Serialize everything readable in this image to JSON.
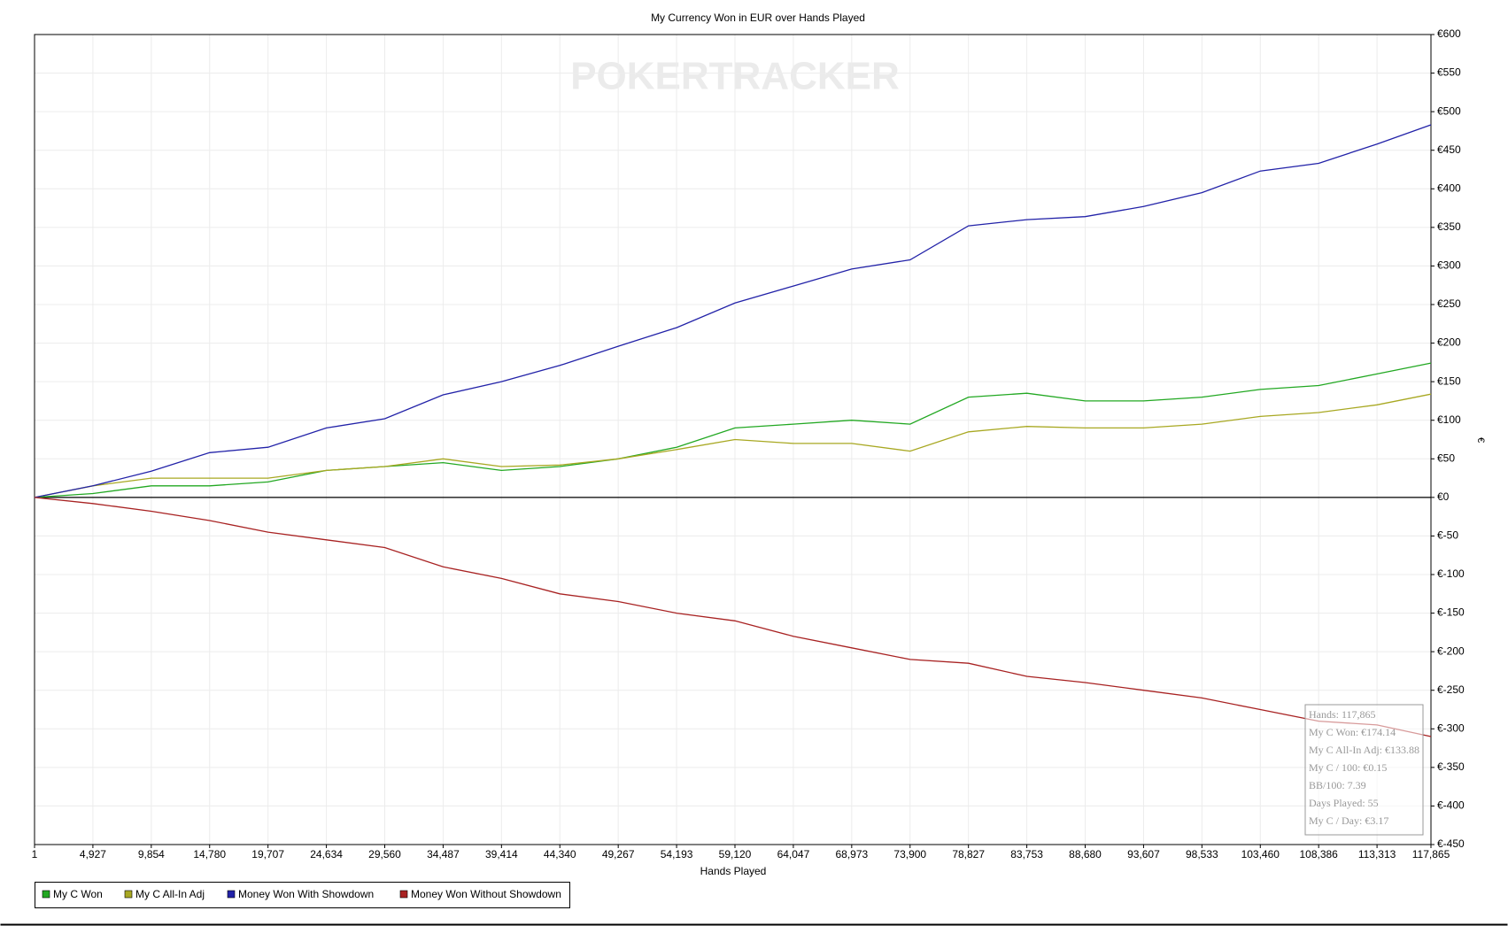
{
  "chart_data": {
    "type": "line",
    "title": "My Currency Won in EUR over Hands Played",
    "watermark": "POKERTRACKER",
    "x_label": "Hands Played",
    "y_label": "€",
    "xlim": [
      1,
      117865
    ],
    "ylim": [
      -450,
      600
    ],
    "grid": true,
    "legend": "bottom-left",
    "xticks": [
      1,
      {
        "value": 4927,
        "label": "4,927"
      },
      {
        "value": 9854,
        "label": "9,854"
      },
      {
        "value": 14780,
        "label": "14,780"
      },
      {
        "value": 19707,
        "label": "19,707"
      },
      {
        "value": 24634,
        "label": "24,634"
      },
      {
        "value": 29560,
        "label": "29,560"
      },
      {
        "value": 34487,
        "label": "34,487"
      },
      {
        "value": 39414,
        "label": "39,414"
      },
      {
        "value": 44340,
        "label": "44,340"
      },
      {
        "value": 49267,
        "label": "49,267"
      },
      {
        "value": 54193,
        "label": "54,193"
      },
      {
        "value": 59120,
        "label": "59,120"
      },
      {
        "value": 64047,
        "label": "64,047"
      },
      {
        "value": 68973,
        "label": "68,973"
      },
      {
        "value": 73900,
        "label": "73,900"
      },
      {
        "value": 78827,
        "label": "78,827"
      },
      {
        "value": 83753,
        "label": "83,753"
      },
      {
        "value": 88680,
        "label": "88,680"
      },
      {
        "value": 93607,
        "label": "93,607"
      },
      {
        "value": 98533,
        "label": "98,533"
      },
      {
        "value": 103460,
        "label": "103,460"
      },
      {
        "value": 108386,
        "label": "108,386"
      },
      {
        "value": 113313,
        "label": "113,313"
      },
      {
        "value": 117865,
        "label": "117,865"
      }
    ],
    "yticks": [
      {
        "value": 600,
        "label": "€600"
      },
      {
        "value": 550,
        "label": "€550"
      },
      {
        "value": 500,
        "label": "€500"
      },
      {
        "value": 450,
        "label": "€450"
      },
      {
        "value": 400,
        "label": "€400"
      },
      {
        "value": 350,
        "label": "€350"
      },
      {
        "value": 300,
        "label": "€300"
      },
      {
        "value": 250,
        "label": "€250"
      },
      {
        "value": 200,
        "label": "€200"
      },
      {
        "value": 150,
        "label": "€150"
      },
      {
        "value": 100,
        "label": "€100"
      },
      {
        "value": 50,
        "label": "€50"
      },
      {
        "value": 0,
        "label": "€0"
      },
      {
        "value": -50,
        "label": "€-50"
      },
      {
        "value": -100,
        "label": "€-100"
      },
      {
        "value": -150,
        "label": "€-150"
      },
      {
        "value": -200,
        "label": "€-200"
      },
      {
        "value": -250,
        "label": "€-250"
      },
      {
        "value": -300,
        "label": "€-300"
      },
      {
        "value": -350,
        "label": "€-350"
      },
      {
        "value": -400,
        "label": "€-400"
      },
      {
        "value": -450,
        "label": "€-450"
      }
    ],
    "x": [
      1,
      4927,
      9854,
      14780,
      19707,
      24634,
      29560,
      34487,
      39414,
      44340,
      49267,
      54193,
      59120,
      64047,
      68973,
      73900,
      78827,
      83753,
      88680,
      93607,
      98533,
      103460,
      108386,
      113313,
      117865
    ],
    "series": [
      {
        "name": "My C Won",
        "color": "#22a822",
        "values": [
          0,
          5,
          15,
          15,
          20,
          35,
          40,
          45,
          35,
          40,
          50,
          65,
          90,
          95,
          100,
          95,
          130,
          135,
          125,
          125,
          130,
          140,
          145,
          160,
          174.14
        ]
      },
      {
        "name": "My C All-In Adj",
        "color": "#a8a822",
        "values": [
          0,
          15,
          25,
          25,
          25,
          35,
          40,
          50,
          40,
          42,
          50,
          62,
          75,
          70,
          70,
          60,
          85,
          92,
          90,
          90,
          95,
          105,
          110,
          120,
          133.88
        ]
      },
      {
        "name": "Money Won With Showdown",
        "color": "#2222a8",
        "values": [
          0,
          15,
          34,
          58,
          65,
          90,
          102,
          133,
          150,
          171,
          196,
          220,
          252,
          274,
          296,
          308,
          352,
          360,
          364,
          377,
          395,
          423,
          433,
          458,
          483
        ]
      },
      {
        "name": "Money Won Without Showdown",
        "color": "#a82222",
        "values": [
          0,
          -8,
          -18,
          -30,
          -45,
          -55,
          -65,
          -90,
          -105,
          -125,
          -135,
          -150,
          -160,
          -180,
          -195,
          -210,
          -215,
          -232,
          -240,
          -250,
          -260,
          -275,
          -290,
          -295,
          -310
        ]
      }
    ],
    "tooltip": [
      "Hands: 117,865",
      "My C Won: €174.14",
      "My C All-In Adj: €133.88",
      "My C / 100: €0.15",
      "BB/100: 7.39",
      "Days Played: 55",
      "My C / Day: €3.17"
    ]
  }
}
